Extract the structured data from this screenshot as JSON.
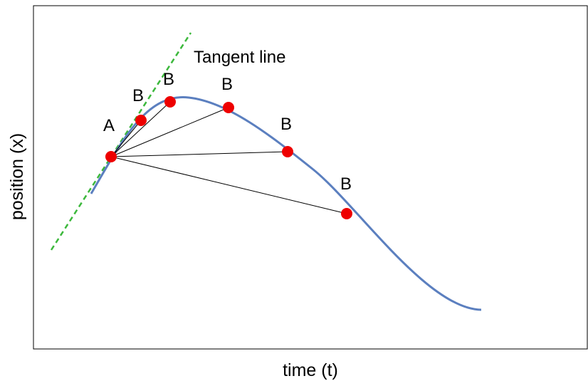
{
  "diagram": {
    "xlabel": "time (t)",
    "ylabel": "position (x)",
    "tangent_label": "Tangent line",
    "point_a_label": "A",
    "point_b_labels": [
      "B",
      "B",
      "B",
      "B",
      "B"
    ]
  },
  "colors": {
    "curve": "#5b7fbf",
    "tangent": "#3cb83c",
    "point": "#ee0000",
    "chord": "#000000",
    "frame": "#000000"
  }
}
